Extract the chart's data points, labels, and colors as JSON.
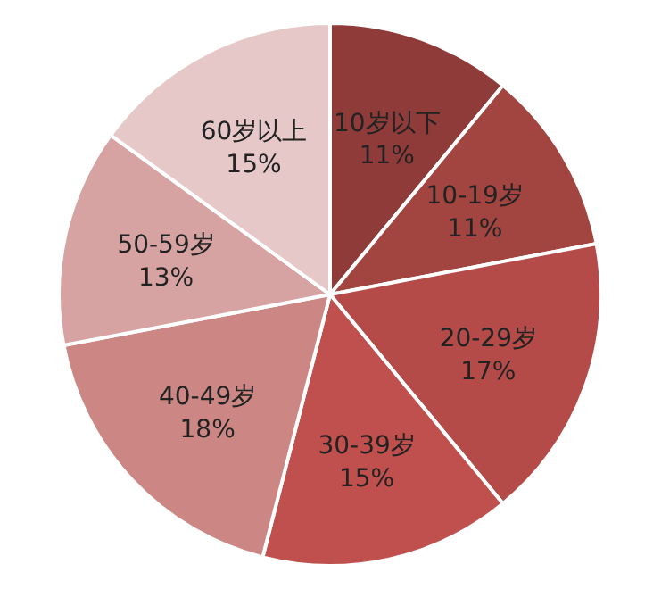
{
  "chart_data": {
    "type": "pie",
    "categories": [
      "10岁以下",
      "10-19岁",
      "20-29岁",
      "30-39岁",
      "40-49岁",
      "50-59岁",
      "60岁以上"
    ],
    "values": [
      11,
      11,
      17,
      15,
      18,
      13,
      15
    ],
    "value_labels": [
      "11%",
      "11%",
      "17%",
      "15%",
      "18%",
      "13%",
      "15%"
    ],
    "colors": [
      "#8e3b3a",
      "#a2443f",
      "#b44b48",
      "#c0504d",
      "#cc8784",
      "#d6a3a2",
      "#e5c8c7"
    ]
  }
}
